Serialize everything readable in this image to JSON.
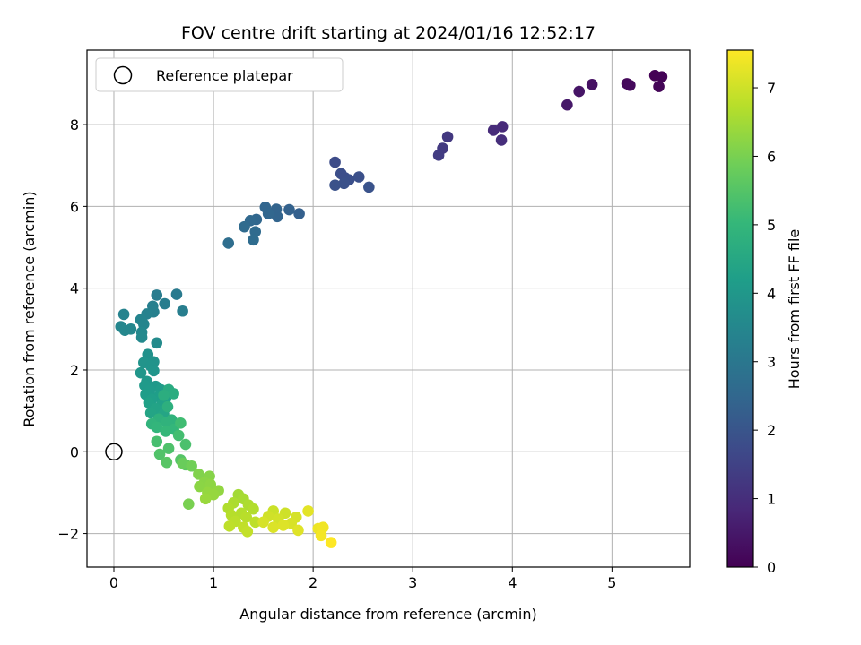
{
  "chart_data": {
    "type": "scatter",
    "title": "FOV centre drift starting at 2024/01/16 12:52:17",
    "xlabel": "Angular distance from reference (arcmin)",
    "ylabel": "Rotation from reference (arcmin)",
    "xlim": [
      -0.27,
      5.78
    ],
    "ylim": [
      -2.82,
      9.82
    ],
    "xticks": [
      0,
      1,
      2,
      3,
      4,
      5
    ],
    "yticks": [
      -2,
      0,
      2,
      4,
      6,
      8
    ],
    "grid": true,
    "legend": {
      "placement": "top-left",
      "entries": [
        {
          "label": "Reference platepar",
          "marker": "open-circle"
        }
      ]
    },
    "reference_point": {
      "x": 0,
      "y": 0
    },
    "colorbar": {
      "label": "Hours from first FF file",
      "colormap": "viridis",
      "range": [
        0,
        7.55
      ],
      "ticks": [
        0,
        1,
        2,
        3,
        4,
        5,
        6,
        7
      ]
    },
    "colormap_stops": [
      "#440154",
      "#482878",
      "#3e4989",
      "#31688e",
      "#26828e",
      "#1f9e89",
      "#35b779",
      "#6ece58",
      "#b5de2b",
      "#fde725"
    ],
    "points": [
      {
        "x": 5.43,
        "y": 9.2,
        "t": 0.02
      },
      {
        "x": 5.5,
        "y": 9.17,
        "t": 0.05
      },
      {
        "x": 5.47,
        "y": 8.93,
        "t": 0.08
      },
      {
        "x": 5.15,
        "y": 9.0,
        "t": 0.15
      },
      {
        "x": 5.18,
        "y": 8.96,
        "t": 0.18
      },
      {
        "x": 4.8,
        "y": 8.98,
        "t": 0.35
      },
      {
        "x": 4.67,
        "y": 8.81,
        "t": 0.42
      },
      {
        "x": 4.55,
        "y": 8.48,
        "t": 0.5
      },
      {
        "x": 3.9,
        "y": 7.95,
        "t": 0.9
      },
      {
        "x": 3.81,
        "y": 7.86,
        "t": 0.95
      },
      {
        "x": 3.89,
        "y": 7.62,
        "t": 1.0
      },
      {
        "x": 3.35,
        "y": 7.7,
        "t": 1.25
      },
      {
        "x": 3.3,
        "y": 7.42,
        "t": 1.3
      },
      {
        "x": 3.26,
        "y": 7.25,
        "t": 1.35
      },
      {
        "x": 2.22,
        "y": 7.08,
        "t": 1.75
      },
      {
        "x": 2.28,
        "y": 6.8,
        "t": 1.8
      },
      {
        "x": 2.32,
        "y": 6.7,
        "t": 1.82
      },
      {
        "x": 2.36,
        "y": 6.65,
        "t": 1.85
      },
      {
        "x": 2.46,
        "y": 6.72,
        "t": 1.88
      },
      {
        "x": 2.31,
        "y": 6.56,
        "t": 1.9
      },
      {
        "x": 2.22,
        "y": 6.52,
        "t": 1.92
      },
      {
        "x": 2.56,
        "y": 6.47,
        "t": 1.95
      },
      {
        "x": 1.86,
        "y": 5.82,
        "t": 2.3
      },
      {
        "x": 1.76,
        "y": 5.92,
        "t": 2.35
      },
      {
        "x": 1.63,
        "y": 5.93,
        "t": 2.4
      },
      {
        "x": 1.64,
        "y": 5.75,
        "t": 2.42
      },
      {
        "x": 1.52,
        "y": 5.98,
        "t": 2.45
      },
      {
        "x": 1.55,
        "y": 5.82,
        "t": 2.48
      },
      {
        "x": 1.43,
        "y": 5.68,
        "t": 2.5
      },
      {
        "x": 1.37,
        "y": 5.65,
        "t": 2.55
      },
      {
        "x": 1.31,
        "y": 5.5,
        "t": 2.6
      },
      {
        "x": 1.42,
        "y": 5.38,
        "t": 2.62
      },
      {
        "x": 1.4,
        "y": 5.18,
        "t": 2.65
      },
      {
        "x": 1.15,
        "y": 5.1,
        "t": 2.7
      },
      {
        "x": 0.63,
        "y": 3.85,
        "t": 3.1
      },
      {
        "x": 0.43,
        "y": 3.83,
        "t": 3.15
      },
      {
        "x": 0.51,
        "y": 3.62,
        "t": 3.2
      },
      {
        "x": 0.69,
        "y": 3.44,
        "t": 3.22
      },
      {
        "x": 0.39,
        "y": 3.56,
        "t": 3.25
      },
      {
        "x": 0.4,
        "y": 3.42,
        "t": 3.3
      },
      {
        "x": 0.33,
        "y": 3.37,
        "t": 3.35
      },
      {
        "x": 0.1,
        "y": 3.36,
        "t": 3.4
      },
      {
        "x": 0.27,
        "y": 3.23,
        "t": 3.42
      },
      {
        "x": 0.3,
        "y": 3.12,
        "t": 3.45
      },
      {
        "x": 0.07,
        "y": 3.06,
        "t": 3.48
      },
      {
        "x": 0.11,
        "y": 2.97,
        "t": 3.5
      },
      {
        "x": 0.17,
        "y": 3.0,
        "t": 3.52
      },
      {
        "x": 0.28,
        "y": 2.92,
        "t": 3.55
      },
      {
        "x": 0.28,
        "y": 2.8,
        "t": 3.58
      },
      {
        "x": 0.43,
        "y": 2.66,
        "t": 3.62
      },
      {
        "x": 0.34,
        "y": 2.38,
        "t": 3.8
      },
      {
        "x": 0.4,
        "y": 2.2,
        "t": 3.85
      },
      {
        "x": 0.3,
        "y": 2.18,
        "t": 3.88
      },
      {
        "x": 0.37,
        "y": 2.1,
        "t": 3.9
      },
      {
        "x": 0.4,
        "y": 1.98,
        "t": 3.92
      },
      {
        "x": 0.27,
        "y": 1.93,
        "t": 3.95
      },
      {
        "x": 0.33,
        "y": 1.72,
        "t": 4.0
      },
      {
        "x": 0.42,
        "y": 1.6,
        "t": 4.05
      },
      {
        "x": 0.31,
        "y": 1.62,
        "t": 4.08
      },
      {
        "x": 0.36,
        "y": 1.5,
        "t": 4.1
      },
      {
        "x": 0.47,
        "y": 1.52,
        "t": 4.12
      },
      {
        "x": 0.32,
        "y": 1.4,
        "t": 4.15
      },
      {
        "x": 0.45,
        "y": 1.35,
        "t": 4.2
      },
      {
        "x": 0.38,
        "y": 1.28,
        "t": 4.22
      },
      {
        "x": 0.52,
        "y": 1.3,
        "t": 4.25
      },
      {
        "x": 0.35,
        "y": 1.2,
        "t": 4.28
      },
      {
        "x": 0.48,
        "y": 1.15,
        "t": 4.3
      },
      {
        "x": 0.42,
        "y": 1.05,
        "t": 4.35
      },
      {
        "x": 0.37,
        "y": 0.95,
        "t": 4.4
      },
      {
        "x": 0.5,
        "y": 0.92,
        "t": 4.42
      },
      {
        "x": 0.55,
        "y": 1.52,
        "t": 4.6
      },
      {
        "x": 0.6,
        "y": 1.42,
        "t": 4.65
      },
      {
        "x": 0.5,
        "y": 1.38,
        "t": 4.7
      },
      {
        "x": 0.54,
        "y": 1.1,
        "t": 4.75
      },
      {
        "x": 0.45,
        "y": 0.8,
        "t": 4.8
      },
      {
        "x": 0.58,
        "y": 0.78,
        "t": 4.85
      },
      {
        "x": 0.53,
        "y": 0.72,
        "t": 4.88
      },
      {
        "x": 0.38,
        "y": 0.68,
        "t": 4.9
      },
      {
        "x": 0.43,
        "y": 0.6,
        "t": 4.95
      },
      {
        "x": 0.6,
        "y": 0.55,
        "t": 5.0
      },
      {
        "x": 0.52,
        "y": 0.5,
        "t": 5.02
      },
      {
        "x": 0.67,
        "y": 0.7,
        "t": 5.2
      },
      {
        "x": 0.65,
        "y": 0.4,
        "t": 5.25
      },
      {
        "x": 0.43,
        "y": 0.25,
        "t": 5.3
      },
      {
        "x": 0.72,
        "y": 0.18,
        "t": 5.35
      },
      {
        "x": 0.55,
        "y": 0.08,
        "t": 5.4
      },
      {
        "x": 0.46,
        "y": -0.06,
        "t": 5.45
      },
      {
        "x": 0.67,
        "y": -0.2,
        "t": 5.5
      },
      {
        "x": 0.53,
        "y": -0.26,
        "t": 5.55
      },
      {
        "x": 0.72,
        "y": -0.32,
        "t": 5.6
      },
      {
        "x": 0.69,
        "y": -0.28,
        "t": 5.8
      },
      {
        "x": 0.78,
        "y": -0.35,
        "t": 5.9
      },
      {
        "x": 0.75,
        "y": -1.28,
        "t": 6.0
      },
      {
        "x": 0.85,
        "y": -0.55,
        "t": 6.1
      },
      {
        "x": 0.96,
        "y": -0.6,
        "t": 6.15
      },
      {
        "x": 0.91,
        "y": -0.75,
        "t": 6.2
      },
      {
        "x": 0.86,
        "y": -0.85,
        "t": 6.22
      },
      {
        "x": 0.97,
        "y": -0.8,
        "t": 6.25
      },
      {
        "x": 1.05,
        "y": -0.95,
        "t": 6.3
      },
      {
        "x": 0.94,
        "y": -1.0,
        "t": 6.32
      },
      {
        "x": 1.0,
        "y": -1.05,
        "t": 6.35
      },
      {
        "x": 0.92,
        "y": -1.15,
        "t": 6.38
      },
      {
        "x": 1.25,
        "y": -1.05,
        "t": 6.5
      },
      {
        "x": 1.3,
        "y": -1.15,
        "t": 6.55
      },
      {
        "x": 1.2,
        "y": -1.25,
        "t": 6.6
      },
      {
        "x": 1.35,
        "y": -1.3,
        "t": 6.62
      },
      {
        "x": 1.15,
        "y": -1.38,
        "t": 6.65
      },
      {
        "x": 1.4,
        "y": -1.4,
        "t": 6.68
      },
      {
        "x": 1.28,
        "y": -1.5,
        "t": 6.7
      },
      {
        "x": 1.18,
        "y": -1.55,
        "t": 6.72
      },
      {
        "x": 1.33,
        "y": -1.6,
        "t": 6.75
      },
      {
        "x": 1.22,
        "y": -1.7,
        "t": 6.78
      },
      {
        "x": 1.42,
        "y": -1.72,
        "t": 6.8
      },
      {
        "x": 1.16,
        "y": -1.82,
        "t": 6.82
      },
      {
        "x": 1.3,
        "y": -1.85,
        "t": 6.85
      },
      {
        "x": 1.34,
        "y": -1.95,
        "t": 6.88
      },
      {
        "x": 1.6,
        "y": -1.45,
        "t": 6.95
      },
      {
        "x": 1.72,
        "y": -1.5,
        "t": 7.0
      },
      {
        "x": 1.55,
        "y": -1.58,
        "t": 7.02
      },
      {
        "x": 1.65,
        "y": -1.65,
        "t": 7.05
      },
      {
        "x": 1.83,
        "y": -1.6,
        "t": 7.08
      },
      {
        "x": 1.5,
        "y": -1.72,
        "t": 7.1
      },
      {
        "x": 1.78,
        "y": -1.75,
        "t": 7.12
      },
      {
        "x": 1.6,
        "y": -1.85,
        "t": 7.15
      },
      {
        "x": 1.7,
        "y": -1.8,
        "t": 7.18
      },
      {
        "x": 1.85,
        "y": -1.92,
        "t": 7.2
      },
      {
        "x": 1.95,
        "y": -1.45,
        "t": 7.25
      },
      {
        "x": 2.05,
        "y": -1.88,
        "t": 7.35
      },
      {
        "x": 2.1,
        "y": -1.85,
        "t": 7.4
      },
      {
        "x": 2.08,
        "y": -2.05,
        "t": 7.45
      },
      {
        "x": 2.18,
        "y": -2.22,
        "t": 7.55
      }
    ]
  }
}
